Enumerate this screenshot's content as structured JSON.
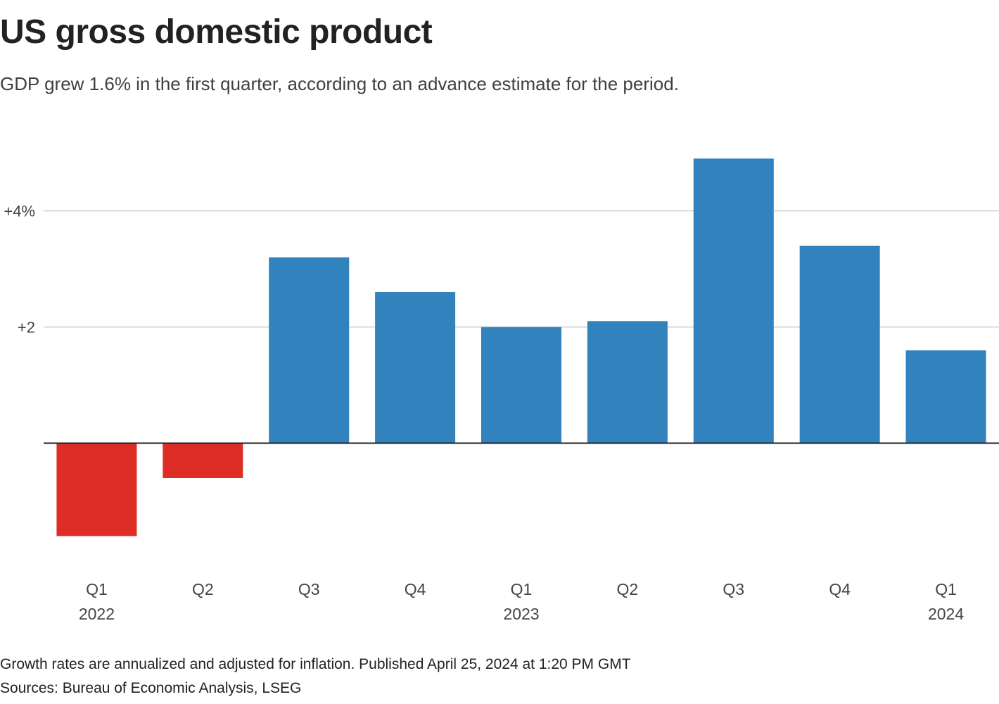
{
  "title": "US gross domestic product",
  "subtitle": "GDP grew 1.6% in the first quarter, according to an advance estimate for the period.",
  "footnote": "Growth rates are annualized and adjusted for inflation. Published April 25, 2024 at 1:20 PM GMT",
  "source": "Sources: Bureau of Economic Analysis, LSEG",
  "colors": {
    "positive": "#3182bd",
    "negative": "#de2d26",
    "grid": "#cccccc",
    "axis": "#222222",
    "label": "#444444"
  },
  "chart_data": {
    "type": "bar",
    "categories": [
      "Q1",
      "Q2",
      "Q3",
      "Q4",
      "Q1",
      "Q2",
      "Q3",
      "Q4",
      "Q1"
    ],
    "year_labels": [
      "2022",
      "",
      "",
      "",
      "2023",
      "",
      "",
      "",
      "2024"
    ],
    "values": [
      -1.6,
      -0.6,
      3.2,
      2.6,
      2.0,
      2.1,
      4.9,
      3.4,
      1.6
    ],
    "yticks": [
      {
        "value": 2,
        "label": "+2"
      },
      {
        "value": 4,
        "label": "+4%"
      }
    ],
    "ylim": [
      -2.0,
      5.0
    ],
    "grid": true
  }
}
